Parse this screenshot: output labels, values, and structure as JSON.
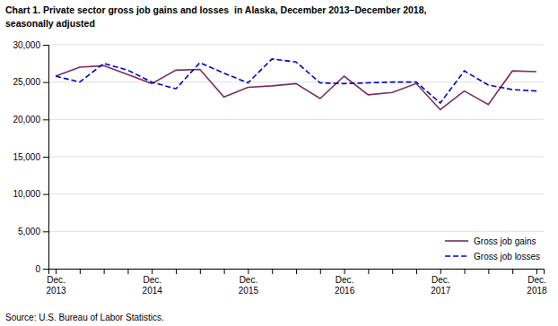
{
  "chart_data": {
    "type": "line",
    "title": "Chart 1. Private sector gross job gains and losses  in Alaska, December 2013–December 2018,",
    "subtitle": "seasonally adjusted",
    "annotations": [
      "Source: U.S. Bureau of Labor Statistics."
    ],
    "categories": [
      "Dec.\n2013",
      null,
      null,
      null,
      "Dec.\n2014",
      null,
      null,
      null,
      "Dec.\n2015",
      null,
      null,
      null,
      "Dec.\n2016",
      null,
      null,
      null,
      "Dec.\n2017",
      null,
      null,
      null,
      "Dec.\n2018"
    ],
    "series": [
      {
        "name": "Gross job gains",
        "color": "#7B2D5E",
        "line_style": "solid",
        "values": [
          25800,
          27000,
          27200,
          26000,
          24800,
          26600,
          26700,
          23000,
          24300,
          24500,
          24800,
          22800,
          25800,
          23300,
          23600,
          24800,
          21300,
          23800,
          22000,
          26500,
          26400
        ]
      },
      {
        "name": "Gross job losses",
        "color": "#0000CD",
        "line_style": "dashed",
        "values": [
          25800,
          25000,
          27500,
          26600,
          25000,
          24100,
          27600,
          26200,
          24900,
          28100,
          27700,
          24900,
          24800,
          24900,
          25000,
          25000,
          22200,
          26500,
          24600,
          24000,
          23800
        ]
      }
    ],
    "ylim": [
      0,
      30000
    ],
    "yticks": [
      0,
      {
        "value": 5000,
        "label": "5,000"
      },
      {
        "value": 10000,
        "label": "10,000"
      },
      {
        "value": 15000,
        "label": "15,000"
      },
      {
        "value": 20000,
        "label": "20,000"
      },
      {
        "value": 25000,
        "label": "25,000"
      },
      {
        "value": 30000,
        "label": "30,000"
      }
    ],
    "grid": true,
    "legend": "lower right"
  }
}
